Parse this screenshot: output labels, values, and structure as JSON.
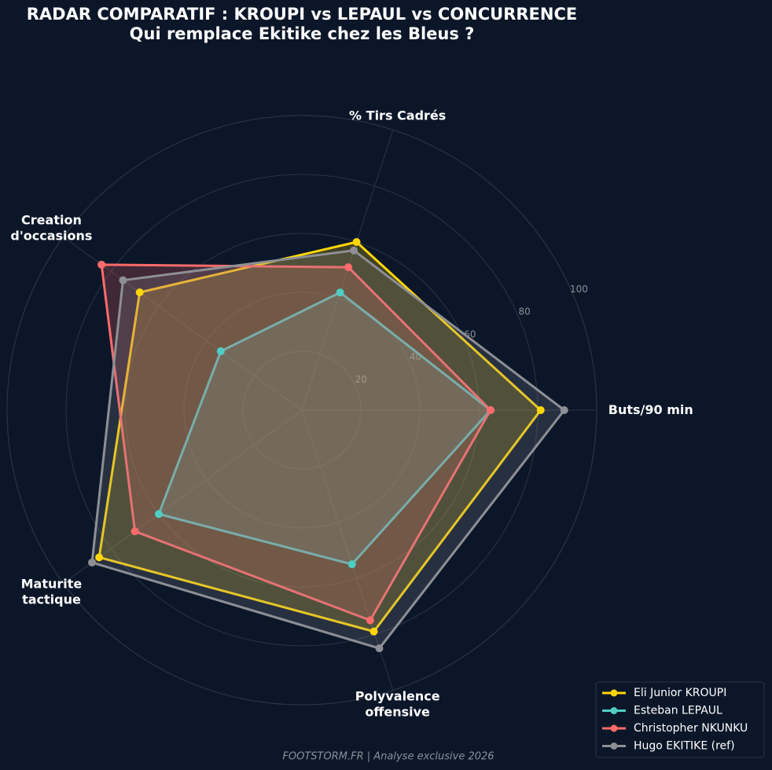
{
  "chart_data": {
    "type": "radar",
    "title": "RADAR COMPARATIF : KROUPI vs LEPAUL vs CONCURRENCE",
    "subtitle": "Qui remplace Ekitike chez les Bleus ?",
    "categories": [
      "Buts/90 min",
      "% Tirs Cadrés",
      "Creation\nd'occasions",
      "Maturite\ntactique",
      "Polyvalence\noffensive"
    ],
    "series": [
      {
        "name": "Eli Junior KROUPI",
        "color": "#ffd60a",
        "values": [
          81,
          60,
          68,
          85,
          79
        ]
      },
      {
        "name": "Esteban LEPAUL",
        "color": "#4ecdc4",
        "values": [
          64,
          42,
          34,
          60,
          55
        ]
      },
      {
        "name": "Christopher NKUNKU",
        "color": "#ff6b6b",
        "values": [
          64,
          51,
          84,
          70,
          75
        ]
      },
      {
        "name": "Hugo EKITIKE (ref)",
        "color": "#8d8f94",
        "values": [
          89,
          57,
          75,
          88,
          85
        ]
      }
    ],
    "ylim": [
      0,
      100
    ],
    "yticks": [
      20,
      40,
      60,
      80,
      100
    ],
    "grid": true,
    "legend": "lower right",
    "footer": "FOOTSTORM.FR | Analyse exclusive 2026"
  }
}
